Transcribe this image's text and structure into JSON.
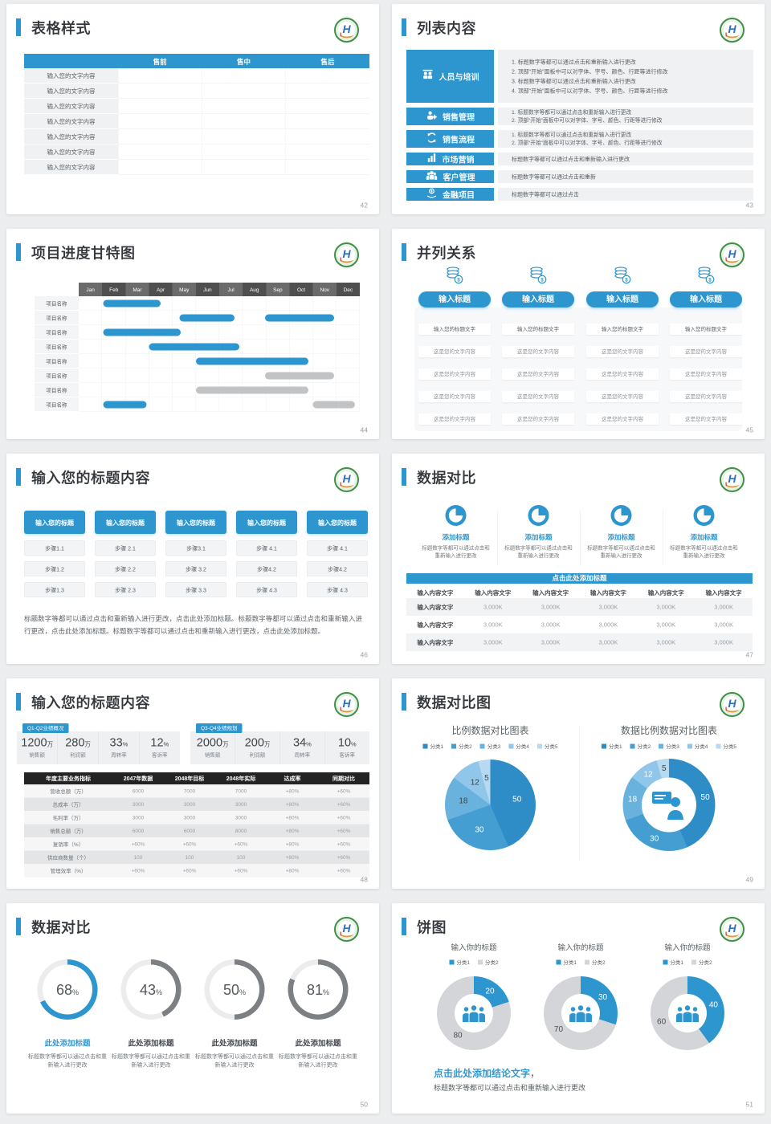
{
  "page": {
    "background": "#ebedee",
    "accent_blue": "#2d96cf"
  },
  "slides": {
    "s42": {
      "title": "表格样式",
      "page": "42",
      "header": [
        "",
        "售前",
        "售中",
        "售后"
      ],
      "rows": [
        [
          "输入您的文字内容",
          "",
          "",
          ""
        ],
        [
          "输入您的文字内容",
          "",
          "",
          ""
        ],
        [
          "输入您的文字内容",
          "",
          "",
          ""
        ],
        [
          "输入您的文字内容",
          "",
          "",
          ""
        ],
        [
          "输入您的文字内容",
          "",
          "",
          ""
        ],
        [
          "输入您的文字内容",
          "",
          "",
          ""
        ],
        [
          "输入您的文字内容",
          "",
          "",
          ""
        ]
      ]
    },
    "s43": {
      "title": "列表内容",
      "page": "43",
      "items": [
        {
          "label": "人员与培训",
          "lines": [
            "1.  标题数字等都可以通过点击和重新输入进行更改",
            "2.  顶部“开始”面板中可以对字体、字号、颜色、行距等进行修改",
            "3.  标题数字等都可以通过点击和重新输入进行更改",
            "4.  顶部“开始”面板中可以对字体、字号、颜色、行距等进行修改"
          ]
        },
        {
          "label": "销售管理",
          "lines": [
            "1.  标题数字等都可以通过点击和重新输入进行更改",
            "2.  顶部“开始”面板中可以对字体、字号、颜色、行距等进行修改"
          ]
        },
        {
          "label": "销售流程",
          "lines": [
            "1.  标题数字等都可以通过点击和重新输入进行更改",
            "2.  顶部“开始”面板中可以对字体、字号、颜色、行距等进行修改"
          ]
        },
        {
          "label": "市场营销",
          "lines": [
            "标题数字等都可以通过点击和重新输入进行更改"
          ]
        },
        {
          "label": "客户管理",
          "lines": [
            "标题数字等都可以通过点击和重新"
          ]
        },
        {
          "label": "金融项目",
          "lines": [
            "标题数字等都可以通过点击"
          ]
        }
      ]
    },
    "s44": {
      "title": "项目进度甘特图",
      "page": "44"
    },
    "s45": {
      "title": "并列关系",
      "page": "45",
      "button": "输入标题",
      "rows": [
        "输入您的标题文字",
        "这是您的文字内容",
        "这是您的文字内容",
        "这是您的文字内容",
        "这是您的文字内容"
      ]
    },
    "s46": {
      "title": "输入您的标题内容",
      "page": "46",
      "header_label": "输入您的标题",
      "steps": [
        [
          "步骤1.1",
          "步骤1.2",
          "步骤1.3"
        ],
        [
          "步骤 2.1",
          "步骤 2.2",
          "步骤 2.3"
        ],
        [
          "步骤3.1",
          "步骤 3.2",
          "步骤 3.3"
        ],
        [
          "步骤 4.1",
          "步骤4.2",
          "步骤 4.3"
        ],
        [
          "步骤 4.1",
          "步骤4.2",
          "步骤 4.3"
        ]
      ],
      "paragraph": "标题数字等都可以通过点击和重新输入进行更改，点击此处添加标题。标题数字等都可以通过点击和重新输入进行更改，点击此处添加标题。标题数字等都可以通过点击和重新输入进行更改，点击此处添加标题。"
    },
    "s47": {
      "title": "数据对比",
      "page": "47",
      "bar": "点击此处添加标题",
      "features": [
        {
          "title": "添加标题",
          "desc": "标题数字等都可以通过点击和重新输入进行更改"
        },
        {
          "title": "添加标题",
          "desc": "标题数字等都可以通过点击和重新输入进行更改"
        },
        {
          "title": "添加标题",
          "desc": "标题数字等都可以通过点击和重新输入进行更改"
        },
        {
          "title": "添加标题",
          "desc": "标题数字等都可以通过点击和重新输入进行更改"
        }
      ],
      "table_rows": [
        [
          "输入内容文字",
          "输入内容文字",
          "输入内容文字",
          "输入内容文字",
          "输入内容文字",
          "输入内容文字"
        ],
        [
          "输入内容文字",
          "3,000K",
          "3,000K",
          "3,000K",
          "3,000K",
          "3,000K"
        ],
        [
          "输入内容文字",
          "3,000K",
          "3,000K",
          "3,000K",
          "3,000K",
          "3,000K"
        ],
        [
          "输入内容文字",
          "3,000K",
          "3,000K",
          "3,000K",
          "3,000K",
          "3,000K"
        ]
      ]
    },
    "s48": {
      "title": "输入您的标题内容",
      "page": "48",
      "panels": [
        {
          "badge": "Q1-Q2业绩概况",
          "stats": [
            {
              "value": "1200",
              "suffix": "万",
              "label": "销售额"
            },
            {
              "value": "280",
              "suffix": "万",
              "label": "利润额"
            },
            {
              "value": "33",
              "suffix": "%",
              "label": "周转率"
            },
            {
              "value": "12",
              "suffix": "%",
              "label": "客诉率"
            }
          ]
        },
        {
          "badge": "Q3-Q4业绩规划",
          "stats": [
            {
              "value": "2000",
              "suffix": "万",
              "label": "销售额"
            },
            {
              "value": "200",
              "suffix": "万",
              "label": "利润额"
            },
            {
              "value": "34",
              "suffix": "%",
              "label": "周转率"
            },
            {
              "value": "10",
              "suffix": "%",
              "label": "客诉率"
            }
          ]
        }
      ],
      "table_rows": [
        [
          "年度主要业务指标",
          "2047年数据",
          "2048年目标",
          "2048年实际",
          "达成率",
          "同期对比"
        ],
        [
          "营收总额（万）",
          "6000",
          "7000",
          "7000",
          "+80%",
          "+60%"
        ],
        [
          "总成本（万）",
          "3000",
          "3000",
          "3000",
          "+80%",
          "+60%"
        ],
        [
          "毛利率（万）",
          "3000",
          "3000",
          "3000",
          "+80%",
          "+60%"
        ],
        [
          "销售总额（万）",
          "6000",
          "6000",
          "8000",
          "+80%",
          "+60%"
        ],
        [
          "复销率（%）",
          "+60%",
          "+60%",
          "+60%",
          "+80%",
          "+60%"
        ],
        [
          "供应商数量（个）",
          "100",
          "100",
          "100",
          "+80%",
          "+60%"
        ],
        [
          "管理效率（%）",
          "+60%",
          "+60%",
          "+60%",
          "+80%",
          "+60%"
        ]
      ]
    },
    "s49": {
      "title": "数据对比图",
      "page": "49"
    },
    "s50": {
      "title": "数据对比",
      "page": "50",
      "item_title": "此处添加标题",
      "desc": "标题数字等都可以通过点击和重新输入进行更改"
    },
    "s51": {
      "title": "饼图",
      "page": "51",
      "chart_title": "输入你的标题",
      "conclusion": "点击此处添加结论文字",
      "comma": "，",
      "note": "标题数字等都可以通过点击和重新输入进行更改"
    }
  },
  "chart_data": {
    "gantt": {
      "type": "gantt",
      "title": "项目进度甘特图",
      "months": [
        "Jan",
        "Feb",
        "Mar",
        "Apr",
        "May",
        "Jun",
        "Jul",
        "Aug",
        "Sep",
        "Oct",
        "Nov",
        "Dec"
      ],
      "row_label": "项目名称",
      "rows": [
        {
          "bars": [
            {
              "s": 1.05,
              "e": 3.5,
              "color": "#2d96cf"
            }
          ]
        },
        {
          "bars": [
            {
              "s": 4.3,
              "e": 6.65,
              "color": "#2d96cf"
            },
            {
              "s": 7.95,
              "e": 10.9,
              "color": "#2d96cf"
            }
          ]
        },
        {
          "bars": [
            {
              "s": 1.05,
              "e": 4.35,
              "color": "#2d96cf"
            }
          ]
        },
        {
          "bars": [
            {
              "s": 3.0,
              "e": 6.85,
              "color": "#2d96cf"
            }
          ]
        },
        {
          "bars": [
            {
              "s": 5.0,
              "e": 9.8,
              "color": "#2d96cf"
            }
          ]
        },
        {
          "bars": [
            {
              "s": 7.95,
              "e": 10.9,
              "color": "#c1c3c5"
            }
          ]
        },
        {
          "bars": [
            {
              "s": 5.0,
              "e": 9.8,
              "color": "#c1c3c5"
            }
          ]
        },
        {
          "bars": [
            {
              "s": 1.05,
              "e": 2.9,
              "color": "#2d96cf"
            },
            {
              "s": 10.0,
              "e": 11.8,
              "color": "#c1c3c5"
            }
          ]
        }
      ]
    },
    "pie_left": {
      "type": "pie",
      "title": "比例数据对比图表",
      "legend": [
        "分类1",
        "分类2",
        "分类3",
        "分类4",
        "分类5"
      ],
      "values": [
        50,
        30,
        18,
        12,
        5
      ],
      "colors": [
        "#2e8cc6",
        "#459ed2",
        "#6ab2de",
        "#90c6e9",
        "#b8daf1"
      ],
      "label_colors": [
        "#ffffff",
        "#ffffff",
        "#3f444a",
        "#3f444a",
        "#3f444a"
      ]
    },
    "donut_right": {
      "type": "donut",
      "title": "数据比例数据对比图表",
      "legend": [
        "分类1",
        "分类2",
        "分类3",
        "分类4",
        "分类5"
      ],
      "values": [
        50,
        30,
        18,
        12,
        5
      ],
      "colors": [
        "#2e8cc6",
        "#459ed2",
        "#6ab2de",
        "#90c6e9",
        "#b8daf1"
      ],
      "label_colors": [
        "#ffffff",
        "#ffffff",
        "#ffffff",
        "#ffffff",
        "#3f444a"
      ]
    },
    "gauges": {
      "type": "gauge",
      "percents": [
        68,
        43,
        50,
        81
      ],
      "colors": [
        "#2d96cf",
        "#7c8084",
        "#7c8084",
        "#7c8084"
      ],
      "track": "#ececee"
    },
    "donuts_small": {
      "type": "donut",
      "legend": [
        "分类1",
        "分类2"
      ],
      "colors": [
        "#2d96cf",
        "#d3d5d8"
      ],
      "sets": [
        [
          20,
          80
        ],
        [
          30,
          70
        ],
        [
          40,
          60
        ]
      ],
      "label_colors": [
        "#ffffff",
        "#4a4f55"
      ]
    }
  }
}
